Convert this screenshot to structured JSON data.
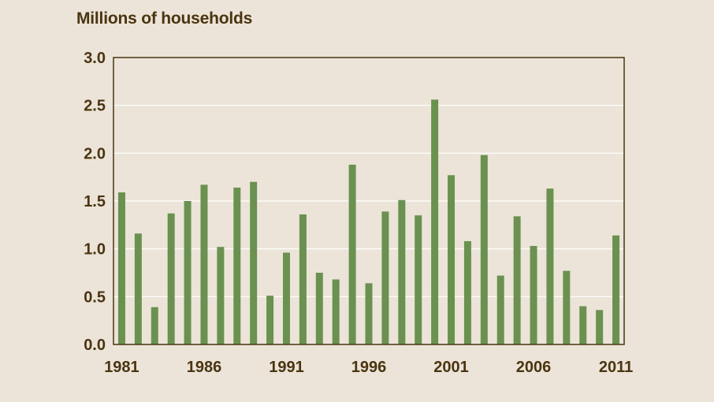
{
  "chart_data": {
    "type": "bar",
    "title": "Millions of households",
    "xlabel": "",
    "ylabel": "",
    "categories": [
      "1981",
      "1982",
      "1983",
      "1984",
      "1985",
      "1986",
      "1987",
      "1988",
      "1989",
      "1990",
      "1991",
      "1992",
      "1993",
      "1994",
      "1995",
      "1996",
      "1997",
      "1998",
      "1999",
      "2000",
      "2001",
      "2002",
      "2003",
      "2004",
      "2005",
      "2006",
      "2007",
      "2008",
      "2009",
      "2010",
      "2011"
    ],
    "values": [
      1.59,
      1.16,
      0.39,
      1.37,
      1.5,
      1.67,
      1.02,
      1.64,
      1.7,
      0.51,
      0.96,
      1.36,
      0.75,
      0.68,
      1.88,
      0.64,
      1.39,
      1.51,
      1.35,
      2.56,
      1.77,
      1.08,
      1.98,
      0.72,
      1.34,
      1.03,
      1.63,
      0.77,
      0.4,
      0.36,
      1.14
    ],
    "ylim": [
      0,
      3.0
    ],
    "y_ticks": [
      "0.0",
      "0.5",
      "1.0",
      "1.5",
      "2.0",
      "2.5",
      "3.0"
    ],
    "x_ticks": [
      "1981",
      "1986",
      "1991",
      "1996",
      "2001",
      "2006",
      "2011"
    ],
    "grid": true,
    "colors": {
      "bar": "#6a9150",
      "axis": "#4a3411",
      "grid": "#ffffff",
      "background": "#ece4d8"
    }
  }
}
